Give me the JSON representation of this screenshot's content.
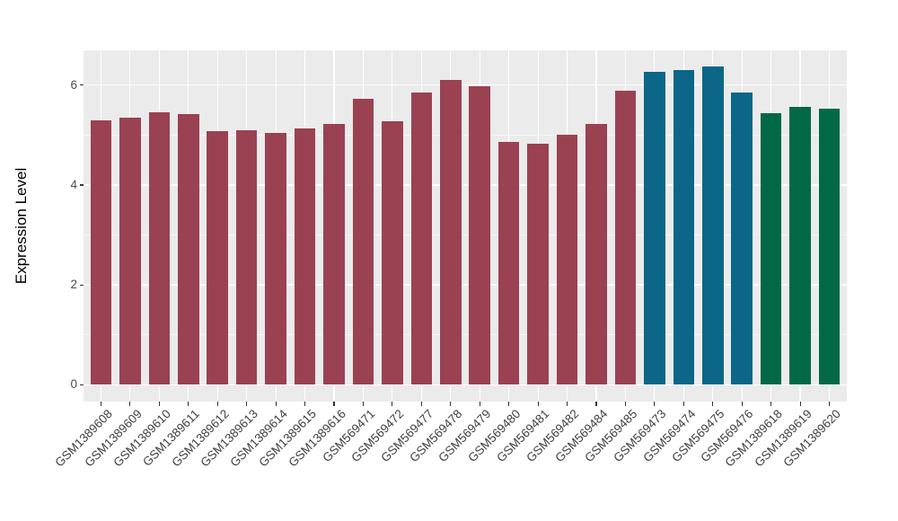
{
  "chart_data": {
    "type": "bar",
    "title": "",
    "xlabel": "",
    "ylabel": "Expression Level",
    "ylim": [
      -0.334,
      6.696
    ],
    "y_major_ticks": [
      0,
      2,
      4,
      6
    ],
    "y_minor_ticks": [
      1,
      3,
      5
    ],
    "grid": "on",
    "legend": "none",
    "categories": [
      "GSM1389608",
      "GSM1389609",
      "GSM1389610",
      "GSM1389611",
      "GSM1389612",
      "GSM1389613",
      "GSM1389614",
      "GSM1389615",
      "GSM1389616",
      "GSM569471",
      "GSM569472",
      "GSM569477",
      "GSM569478",
      "GSM569479",
      "GSM569480",
      "GSM569481",
      "GSM569482",
      "GSM569484",
      "GSM569485",
      "GSM569473",
      "GSM569474",
      "GSM569475",
      "GSM569476",
      "GSM1389618",
      "GSM1389619",
      "GSM1389620"
    ],
    "values": [
      5.29,
      5.35,
      5.45,
      5.42,
      5.07,
      5.1,
      5.05,
      5.13,
      5.23,
      5.72,
      5.27,
      5.85,
      6.1,
      5.97,
      4.87,
      4.82,
      5.0,
      5.23,
      5.89,
      6.27,
      6.3,
      6.37,
      5.85,
      5.43,
      5.56,
      5.52
    ],
    "groups": [
      "red",
      "red",
      "red",
      "red",
      "red",
      "red",
      "red",
      "red",
      "red",
      "red",
      "red",
      "red",
      "red",
      "red",
      "red",
      "red",
      "red",
      "red",
      "red",
      "blue",
      "blue",
      "blue",
      "blue",
      "green",
      "green",
      "green"
    ]
  },
  "style": {
    "panel_bg": "#EBEBEB",
    "grid_color": "#FFFFFF",
    "tick_color": "#333333",
    "axis_text_color": "#4D4D4D",
    "axis_title_color": "#000000",
    "palette": {
      "red": "#9A4152",
      "blue": "#0B6687",
      "green": "#016946"
    }
  }
}
